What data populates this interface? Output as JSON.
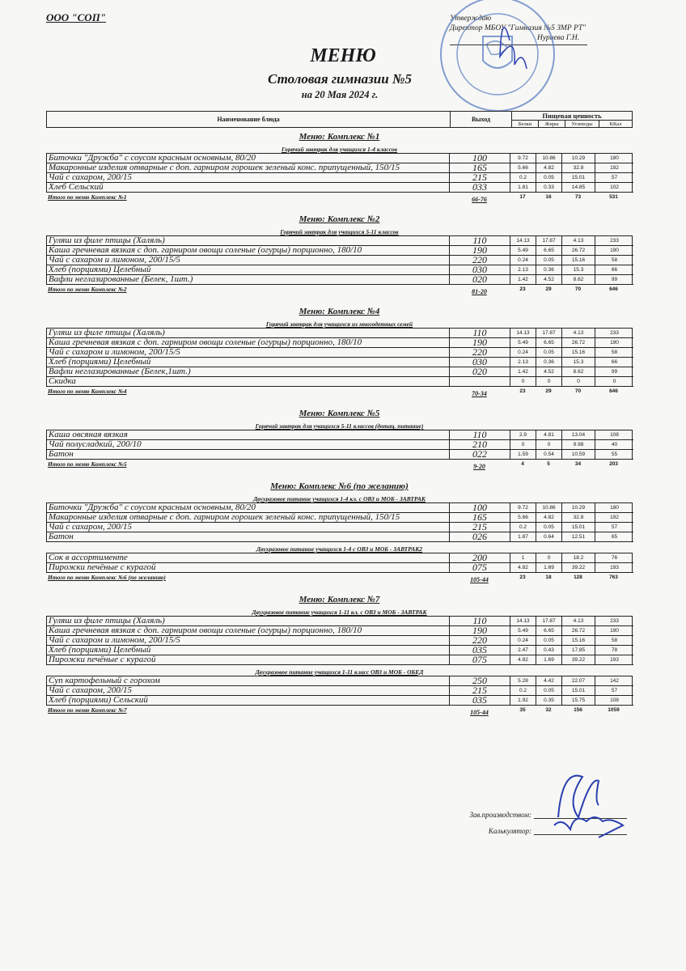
{
  "header": {
    "org": "ООО \"СОП\"",
    "approve_lines": [
      "Утверждаю",
      "Директор МБОУ \"Гимназия №5 ЗМР РТ\"",
      "Нуриева Г.Н."
    ],
    "title": "МЕНЮ",
    "subtitle": "Столовая гимназии №5",
    "date": "на 20 Мая 2024 г."
  },
  "columns": {
    "name": "Наименование блюда",
    "output": "Выход",
    "nutrition": "Пищевая ценность",
    "nutrients": [
      "Белки",
      "Жиры",
      "Углеводы",
      "ККал"
    ]
  },
  "sections": [
    {
      "title": "Меню: Комплекс №1",
      "groups": [
        {
          "title": "Горячий завтрак для учащихся 1-4 классов",
          "rows": [
            [
              "Биточки  \"Дружба\" с соусом красным основным, 80/20",
              "100",
              "9.72",
              "10.86",
              "10.29",
              "180"
            ],
            [
              "Макаронные изделия отварные с доп. гарниром горошек зеленый конс. припущенный, 150/15",
              "165",
              "5.66",
              "4.82",
              "32.8",
              "192"
            ],
            [
              "Чай с сахаром, 200/15",
              "215",
              "0.2",
              "0.05",
              "15.01",
              "57"
            ],
            [
              "Хлеб Сельский",
              "033",
              "1.81",
              "0.33",
              "14.85",
              "102"
            ]
          ]
        }
      ],
      "total": [
        "Итого по меню Комплекс №1",
        "66-76",
        "17",
        "16",
        "73",
        "531"
      ]
    },
    {
      "title": "Меню: Комплекс №2",
      "groups": [
        {
          "title": "Горячий завтрак для учащихся 5-11 классов",
          "rows": [
            [
              "Гуляш из филе птицы (Халяль)",
              "110",
              "14.13",
              "17.87",
              "4.13",
              "233"
            ],
            [
              "Каша гречневая вязкая с доп. гарниром овощи соленые (огурцы) порционно, 180/10",
              "190",
              "5.49",
              "6.65",
              "26.72",
              "190"
            ],
            [
              "Чай с сахаром и лимоном, 200/15/5",
              "220",
              "0.24",
              "0.05",
              "15.16",
              "58"
            ],
            [
              "Хлеб (порциями) Целебный",
              "030",
              "2.13",
              "0.36",
              "15.3",
              "66"
            ],
            [
              "Вафли неглазированные (Белек, 1шт.)",
              "020",
              "1.42",
              "4.52",
              "8.62",
              "99"
            ]
          ]
        }
      ],
      "total": [
        "Итого по меню Комплекс №2",
        "81-20",
        "23",
        "29",
        "70",
        "646"
      ]
    },
    {
      "title": "Меню: Комплекс №4",
      "groups": [
        {
          "title": "Горячий завтрак для учащихся из многодетных семей",
          "rows": [
            [
              "Гуляш из филе птицы (Халяль)",
              "110",
              "14.13",
              "17.87",
              "4.13",
              "233"
            ],
            [
              "Каша гречневая вязкая с доп. гарниром овощи соленые (огурцы) порционно, 180/10",
              "190",
              "5.49",
              "6.65",
              "26.72",
              "190"
            ],
            [
              "Чай с сахаром и лимоном, 200/15/5",
              "220",
              "0.24",
              "0.05",
              "15.16",
              "58"
            ],
            [
              "Хлеб (порциями) Целебный",
              "030",
              "2.13",
              "0.36",
              "15.3",
              "66"
            ],
            [
              "Вафли неглазированные (Белек,1шт.)",
              "020",
              "1.42",
              "4.52",
              "8.62",
              "99"
            ],
            [
              "Скидка",
              "",
              "0",
              "0",
              "0",
              "0"
            ]
          ]
        }
      ],
      "total": [
        "Итого по меню Комплекс №4",
        "70-34",
        "23",
        "29",
        "70",
        "646"
      ]
    },
    {
      "title": "Меню: Комплекс №5",
      "groups": [
        {
          "title": "Горячий завтрак для учащихся 5-11 классов (дотац. питание)",
          "rows": [
            [
              "Каша овсяная вязкая",
              "110",
              "2.9",
              "4.81",
              "13.04",
              "108"
            ],
            [
              "Чай полусладкий, 200/10",
              "210",
              "0",
              "0",
              "9.98",
              "40"
            ],
            [
              "Батон",
              "022",
              "1.59",
              "0.54",
              "10.59",
              "55"
            ]
          ]
        }
      ],
      "total": [
        "Итого по меню Комплекс №5",
        "9-20",
        "4",
        "5",
        "34",
        "203"
      ]
    },
    {
      "title": "Меню: Комплекс №6 (по желанию)",
      "groups": [
        {
          "title": "Двухразовое питание учащихся 1-4 кл. с ОВЗ и МОБ - ЗАВТРАК",
          "rows": [
            [
              "Биточки  \"Дружба\" с соусом красным основным, 80/20",
              "100",
              "9.72",
              "10.86",
              "10.29",
              "180"
            ],
            [
              "Макаронные изделия отварные с доп. гарниром горошек зеленый конс. припущенный, 150/15",
              "165",
              "5.66",
              "4.82",
              "32.8",
              "192"
            ],
            [
              "Чай с сахаром, 200/15",
              "215",
              "0.2",
              "0.05",
              "15.01",
              "57"
            ],
            [
              "Батон",
              "026",
              "1.87",
              "0.64",
              "12.51",
              "65"
            ]
          ]
        },
        {
          "title": "Двухразовое питание учащихся 1-4 с ОВЗ и МОБ - ЗАВТРАК2",
          "rows": [
            [
              "Сок в ассортименте",
              "200",
              "1",
              "0",
              "18.2",
              "76"
            ],
            [
              "Пирожки печёные с курагой",
              "075",
              "4.82",
              "1.69",
              "39.22",
              "193"
            ]
          ]
        }
      ],
      "total": [
        "Итого по меню Комплекс №6 (по желанию)",
        "105-44",
        "23",
        "18",
        "128",
        "763"
      ]
    },
    {
      "title": "Меню: Комплекс №7",
      "groups": [
        {
          "title": "Двухразовое питание учащихся 1-11 кл. с  ОВЗ и МОБ - ЗАВТРАК",
          "rows": [
            [
              "Гуляш из филе птицы (Халяль)",
              "110",
              "14.13",
              "17.87",
              "4.13",
              "233"
            ],
            [
              "Каша гречневая вязкая с доп. гарниром овощи соленые (огурцы) порционно, 180/10",
              "190",
              "5.49",
              "6.65",
              "26.72",
              "190"
            ],
            [
              "Чай с сахаром и лимоном, 200/15/5",
              "220",
              "0.24",
              "0.05",
              "15.16",
              "58"
            ],
            [
              "Хлеб (порциями) Целебный",
              "035",
              "2.47",
              "0.43",
              "17.85",
              "78"
            ],
            [
              "Пирожки печёные с курагой",
              "075",
              "4.82",
              "1.69",
              "39.22",
              "193"
            ]
          ]
        },
        {
          "title": "Двухразовое питание учащихся 1-11 класс ОВЗ и МОБ - ОБЕД",
          "rows": [
            [
              "Суп картофельный с горохом",
              "250",
              "5.28",
              "4.42",
              "22.07",
              "142"
            ],
            [
              "Чай с сахаром, 200/15",
              "215",
              "0.2",
              "0.05",
              "15.01",
              "57"
            ],
            [
              "Хлеб (порциями) Сельский",
              "035",
              "1.92",
              "0.35",
              "15.75",
              "108"
            ]
          ]
        }
      ],
      "total": [
        "Итого по меню Комплекс №7",
        "105-44",
        "35",
        "32",
        "156",
        "1059"
      ]
    }
  ],
  "signatures": {
    "production": "Зав.производством:",
    "calculator": "Калькулятор:"
  },
  "stamp": {
    "text": "МУНИЦИПАЛЬНОЕ БЮДЖЕТНОЕ ОБЩЕОБРАЗОВАТЕЛЬНОЕ УЧРЕЖДЕНИЕ «ГИМНАЗИЯ №5» ЗЕЛЕНОДОЛЬСКОГО МУНИЦИПАЛЬНОГО РАЙОНА РЕСПУБЛИКИ ТАТАРСТАН",
    "color": "#5b7fc4"
  },
  "ink_color": "#2a3fb0"
}
